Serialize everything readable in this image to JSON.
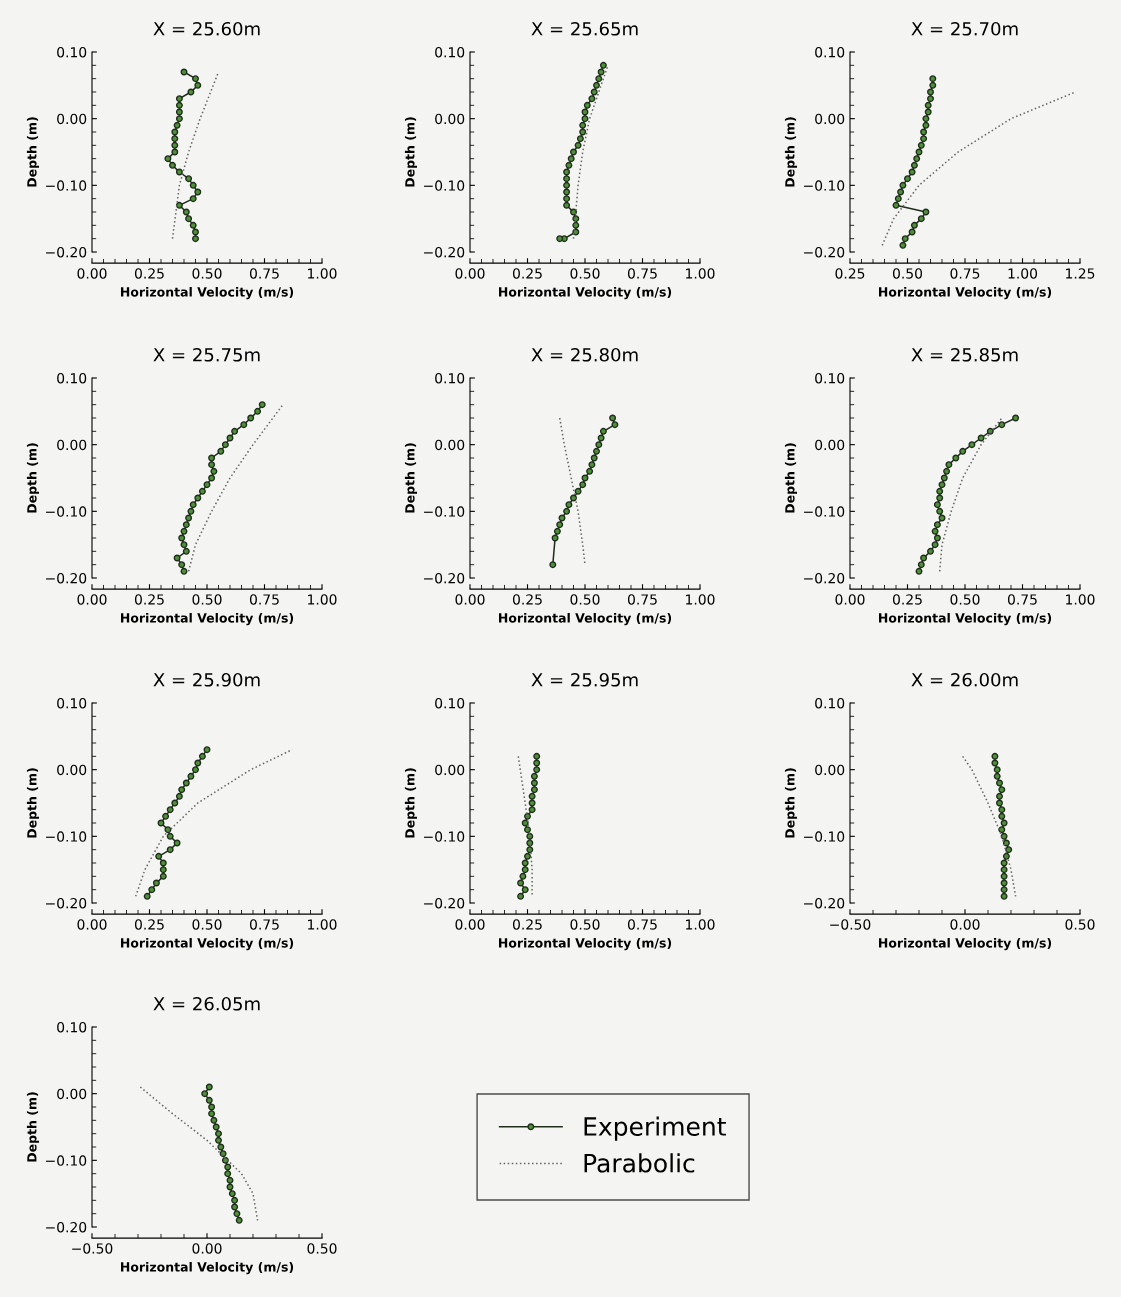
{
  "chart_data": [
    {
      "type": "line",
      "title": "X = 25.60m",
      "xlabel": "Horizontal Velocity (m/s)",
      "ylabel": "Depth (m)",
      "xlim": [
        0,
        1
      ],
      "xticks": [
        {
          "value": 0,
          "label": "0.00"
        },
        {
          "value": 0.25,
          "label": "0.25"
        },
        {
          "value": 0.5,
          "label": "0.50"
        },
        {
          "value": 0.75,
          "label": "0.75"
        },
        {
          "value": 1,
          "label": "1.00"
        }
      ],
      "ylim": [
        -0.2,
        0.1
      ],
      "yticks": [
        {
          "value": -0.2,
          "label": "−0.20"
        },
        {
          "value": -0.1,
          "label": "−0.10"
        },
        {
          "value": 0,
          "label": "0.00"
        },
        {
          "value": 0.1,
          "label": "0.10"
        }
      ],
      "series": [
        {
          "color": "#1e2e1a",
          "marker": "circle",
          "line_style": "solid",
          "x": [
            0.4,
            0.45,
            0.46,
            0.43,
            0.38,
            0.38,
            0.38,
            0.38,
            0.37,
            0.36,
            0.36,
            0.36,
            0.36,
            0.33,
            0.35,
            0.38,
            0.42,
            0.44,
            0.46,
            0.44,
            0.38,
            0.41,
            0.42,
            0.44,
            0.45,
            0.45
          ],
          "values": [
            0.07,
            0.06,
            0.05,
            0.04,
            0.03,
            0.02,
            0.01,
            0.0,
            -0.01,
            -0.02,
            -0.03,
            -0.04,
            -0.05,
            -0.06,
            -0.07,
            -0.08,
            -0.09,
            -0.1,
            -0.11,
            -0.12,
            -0.13,
            -0.14,
            -0.15,
            -0.16,
            -0.17,
            -0.18
          ]
        },
        {
          "color": "#666666",
          "marker": "none",
          "line_style": "dotted",
          "x": [
            0.35,
            0.38,
            0.42,
            0.47,
            0.55
          ],
          "values": [
            -0.18,
            -0.1,
            -0.05,
            0.0,
            0.07
          ]
        }
      ]
    },
    {
      "type": "line",
      "title": "X = 25.65m",
      "xlabel": "Horizontal Velocity (m/s)",
      "ylabel": "Depth (m)",
      "xlim": [
        0,
        1
      ],
      "xticks": [
        {
          "value": 0,
          "label": "0.00"
        },
        {
          "value": 0.25,
          "label": "0.25"
        },
        {
          "value": 0.5,
          "label": "0.50"
        },
        {
          "value": 0.75,
          "label": "0.75"
        },
        {
          "value": 1,
          "label": "1.00"
        }
      ],
      "ylim": [
        -0.2,
        0.1
      ],
      "yticks": [
        {
          "value": -0.2,
          "label": "−0.20"
        },
        {
          "value": -0.1,
          "label": "−0.10"
        },
        {
          "value": 0,
          "label": "0.00"
        },
        {
          "value": 0.1,
          "label": "0.10"
        }
      ],
      "series": [
        {
          "color": "#1e2e1a",
          "marker": "circle",
          "line_style": "solid",
          "x": [
            0.58,
            0.57,
            0.56,
            0.55,
            0.54,
            0.53,
            0.51,
            0.5,
            0.5,
            0.49,
            0.49,
            0.48,
            0.47,
            0.45,
            0.44,
            0.43,
            0.42,
            0.42,
            0.42,
            0.42,
            0.42,
            0.42,
            0.45,
            0.46,
            0.46,
            0.46,
            0.41,
            0.39
          ],
          "values": [
            0.08,
            0.07,
            0.06,
            0.05,
            0.04,
            0.03,
            0.02,
            0.01,
            0.0,
            -0.01,
            -0.02,
            -0.03,
            -0.04,
            -0.05,
            -0.06,
            -0.07,
            -0.08,
            -0.09,
            -0.1,
            -0.11,
            -0.12,
            -0.13,
            -0.14,
            -0.15,
            -0.16,
            -0.17,
            -0.18,
            -0.18
          ]
        },
        {
          "color": "#666666",
          "marker": "none",
          "line_style": "dotted",
          "x": [
            0.45,
            0.47,
            0.49,
            0.52,
            0.57,
            0.6
          ],
          "values": [
            -0.18,
            -0.1,
            -0.05,
            0.0,
            0.05,
            0.08
          ]
        }
      ]
    },
    {
      "type": "line",
      "title": "X = 25.70m",
      "xlabel": "Horizontal Velocity (m/s)",
      "ylabel": "Depth (m)",
      "xlim": [
        0.25,
        1.25
      ],
      "xticks": [
        {
          "value": 0.25,
          "label": "0.25"
        },
        {
          "value": 0.5,
          "label": "0.50"
        },
        {
          "value": 0.75,
          "label": "0.75"
        },
        {
          "value": 1,
          "label": "1.00"
        },
        {
          "value": 1.25,
          "label": "1.25"
        }
      ],
      "ylim": [
        -0.2,
        0.1
      ],
      "yticks": [
        {
          "value": -0.2,
          "label": "−0.20"
        },
        {
          "value": -0.1,
          "label": "−0.10"
        },
        {
          "value": 0,
          "label": "0.00"
        },
        {
          "value": 0.1,
          "label": "0.10"
        }
      ],
      "series": [
        {
          "color": "#1e2e1a",
          "marker": "circle",
          "line_style": "solid",
          "x": [
            0.61,
            0.61,
            0.6,
            0.6,
            0.59,
            0.59,
            0.58,
            0.58,
            0.57,
            0.57,
            0.56,
            0.55,
            0.54,
            0.53,
            0.52,
            0.5,
            0.48,
            0.47,
            0.46,
            0.45,
            0.58,
            0.56,
            0.53,
            0.52,
            0.49,
            0.48
          ],
          "values": [
            0.06,
            0.05,
            0.04,
            0.03,
            0.02,
            0.01,
            0.0,
            -0.01,
            -0.02,
            -0.03,
            -0.04,
            -0.05,
            -0.06,
            -0.07,
            -0.08,
            -0.09,
            -0.1,
            -0.11,
            -0.12,
            -0.13,
            -0.14,
            -0.15,
            -0.16,
            -0.17,
            -0.18,
            -0.19
          ]
        },
        {
          "color": "#666666",
          "marker": "none",
          "line_style": "dotted",
          "x": [
            0.39,
            0.44,
            0.55,
            0.72,
            0.95,
            1.23
          ],
          "values": [
            -0.19,
            -0.15,
            -0.1,
            -0.05,
            0.0,
            0.04
          ]
        }
      ]
    },
    {
      "type": "line",
      "title": "X = 25.75m",
      "xlabel": "Horizontal Velocity (m/s)",
      "ylabel": "Depth (m)",
      "xlim": [
        0,
        1
      ],
      "xticks": [
        {
          "value": 0,
          "label": "0.00"
        },
        {
          "value": 0.25,
          "label": "0.25"
        },
        {
          "value": 0.5,
          "label": "0.50"
        },
        {
          "value": 0.75,
          "label": "0.75"
        },
        {
          "value": 1,
          "label": "1.00"
        }
      ],
      "ylim": [
        -0.2,
        0.1
      ],
      "yticks": [
        {
          "value": -0.2,
          "label": "−0.20"
        },
        {
          "value": -0.1,
          "label": "−0.10"
        },
        {
          "value": 0,
          "label": "0.00"
        },
        {
          "value": 0.1,
          "label": "0.10"
        }
      ],
      "series": [
        {
          "color": "#1e2e1a",
          "marker": "circle",
          "line_style": "solid",
          "x": [
            0.74,
            0.72,
            0.69,
            0.66,
            0.62,
            0.6,
            0.58,
            0.56,
            0.52,
            0.52,
            0.53,
            0.52,
            0.5,
            0.48,
            0.46,
            0.44,
            0.43,
            0.42,
            0.41,
            0.4,
            0.39,
            0.4,
            0.41,
            0.37,
            0.39,
            0.4
          ],
          "values": [
            0.06,
            0.05,
            0.04,
            0.03,
            0.02,
            0.01,
            0.0,
            -0.01,
            -0.02,
            -0.03,
            -0.04,
            -0.05,
            -0.06,
            -0.07,
            -0.08,
            -0.09,
            -0.1,
            -0.11,
            -0.12,
            -0.13,
            -0.14,
            -0.15,
            -0.16,
            -0.17,
            -0.18,
            -0.19
          ]
        },
        {
          "color": "#666666",
          "marker": "none",
          "line_style": "dotted",
          "x": [
            0.42,
            0.45,
            0.52,
            0.6,
            0.7,
            0.83
          ],
          "values": [
            -0.19,
            -0.15,
            -0.1,
            -0.05,
            0.0,
            0.06
          ]
        }
      ]
    },
    {
      "type": "line",
      "title": "X = 25.80m",
      "xlabel": "Horizontal Velocity (m/s)",
      "ylabel": "Depth (m)",
      "xlim": [
        0,
        1
      ],
      "xticks": [
        {
          "value": 0,
          "label": "0.00"
        },
        {
          "value": 0.25,
          "label": "0.25"
        },
        {
          "value": 0.5,
          "label": "0.50"
        },
        {
          "value": 0.75,
          "label": "0.75"
        },
        {
          "value": 1,
          "label": "1.00"
        }
      ],
      "ylim": [
        -0.2,
        0.1
      ],
      "yticks": [
        {
          "value": -0.2,
          "label": "−0.20"
        },
        {
          "value": -0.1,
          "label": "−0.10"
        },
        {
          "value": 0,
          "label": "0.00"
        },
        {
          "value": 0.1,
          "label": "0.10"
        }
      ],
      "series": [
        {
          "color": "#1e2e1a",
          "marker": "circle",
          "line_style": "solid",
          "x": [
            0.62,
            0.63,
            0.58,
            0.57,
            0.56,
            0.55,
            0.54,
            0.53,
            0.52,
            0.5,
            0.49,
            0.47,
            0.45,
            0.43,
            0.42,
            0.4,
            0.39,
            0.38,
            0.37,
            0.36
          ],
          "values": [
            0.04,
            0.03,
            0.02,
            0.01,
            0.0,
            -0.01,
            -0.02,
            -0.03,
            -0.04,
            -0.05,
            -0.06,
            -0.07,
            -0.08,
            -0.09,
            -0.1,
            -0.11,
            -0.12,
            -0.13,
            -0.14,
            -0.18
          ]
        },
        {
          "color": "#666666",
          "marker": "none",
          "line_style": "dotted",
          "x": [
            0.39,
            0.41,
            0.44,
            0.47,
            0.49,
            0.5
          ],
          "values": [
            0.04,
            0.0,
            -0.05,
            -0.1,
            -0.15,
            -0.18
          ]
        }
      ]
    },
    {
      "type": "line",
      "title": "X = 25.85m",
      "xlabel": "Horizontal Velocity (m/s)",
      "ylabel": "Depth (m)",
      "xlim": [
        0,
        1
      ],
      "xticks": [
        {
          "value": 0,
          "label": "0.00"
        },
        {
          "value": 0.25,
          "label": "0.25"
        },
        {
          "value": 0.5,
          "label": "0.50"
        },
        {
          "value": 0.75,
          "label": "0.75"
        },
        {
          "value": 1,
          "label": "1.00"
        }
      ],
      "ylim": [
        -0.2,
        0.1
      ],
      "yticks": [
        {
          "value": -0.2,
          "label": "−0.20"
        },
        {
          "value": -0.1,
          "label": "−0.10"
        },
        {
          "value": 0,
          "label": "0.00"
        },
        {
          "value": 0.1,
          "label": "0.10"
        }
      ],
      "series": [
        {
          "color": "#1e2e1a",
          "marker": "circle",
          "line_style": "solid",
          "x": [
            0.72,
            0.66,
            0.61,
            0.57,
            0.53,
            0.49,
            0.46,
            0.43,
            0.42,
            0.41,
            0.4,
            0.39,
            0.39,
            0.38,
            0.39,
            0.4,
            0.38,
            0.37,
            0.38,
            0.37,
            0.35,
            0.32,
            0.31,
            0.3
          ],
          "values": [
            0.04,
            0.03,
            0.02,
            0.01,
            0.0,
            -0.01,
            -0.02,
            -0.03,
            -0.04,
            -0.05,
            -0.06,
            -0.07,
            -0.08,
            -0.09,
            -0.1,
            -0.11,
            -0.12,
            -0.13,
            -0.14,
            -0.15,
            -0.16,
            -0.17,
            -0.18,
            -0.19
          ]
        },
        {
          "color": "#666666",
          "marker": "none",
          "line_style": "dotted",
          "x": [
            0.39,
            0.4,
            0.44,
            0.49,
            0.57,
            0.66
          ],
          "values": [
            -0.19,
            -0.15,
            -0.1,
            -0.05,
            0.0,
            0.04
          ]
        }
      ]
    },
    {
      "type": "line",
      "title": "X = 25.90m",
      "xlabel": "Horizontal Velocity (m/s)",
      "ylabel": "Depth (m)",
      "xlim": [
        0,
        1
      ],
      "xticks": [
        {
          "value": 0,
          "label": "0.00"
        },
        {
          "value": 0.25,
          "label": "0.25"
        },
        {
          "value": 0.5,
          "label": "0.50"
        },
        {
          "value": 0.75,
          "label": "0.75"
        },
        {
          "value": 1,
          "label": "1.00"
        }
      ],
      "ylim": [
        -0.2,
        0.1
      ],
      "yticks": [
        {
          "value": -0.2,
          "label": "−0.20"
        },
        {
          "value": -0.1,
          "label": "−0.10"
        },
        {
          "value": 0,
          "label": "0.00"
        },
        {
          "value": 0.1,
          "label": "0.10"
        }
      ],
      "series": [
        {
          "color": "#1e2e1a",
          "marker": "circle",
          "line_style": "solid",
          "x": [
            0.5,
            0.48,
            0.46,
            0.45,
            0.43,
            0.41,
            0.39,
            0.38,
            0.36,
            0.34,
            0.32,
            0.3,
            0.33,
            0.34,
            0.37,
            0.34,
            0.29,
            0.31,
            0.31,
            0.31,
            0.28,
            0.26,
            0.24
          ],
          "values": [
            0.03,
            0.02,
            0.01,
            0.0,
            -0.01,
            -0.02,
            -0.03,
            -0.04,
            -0.05,
            -0.06,
            -0.07,
            -0.08,
            -0.09,
            -0.1,
            -0.11,
            -0.12,
            -0.13,
            -0.14,
            -0.15,
            -0.16,
            -0.17,
            -0.18,
            -0.19
          ]
        },
        {
          "color": "#666666",
          "marker": "none",
          "line_style": "dotted",
          "x": [
            0.19,
            0.23,
            0.31,
            0.46,
            0.69,
            0.87
          ],
          "values": [
            -0.19,
            -0.15,
            -0.1,
            -0.05,
            0.0,
            0.03
          ]
        }
      ]
    },
    {
      "type": "line",
      "title": "X = 25.95m",
      "xlabel": "Horizontal Velocity (m/s)",
      "ylabel": "Depth (m)",
      "xlim": [
        0,
        1
      ],
      "xticks": [
        {
          "value": 0,
          "label": "0.00"
        },
        {
          "value": 0.25,
          "label": "0.25"
        },
        {
          "value": 0.5,
          "label": "0.50"
        },
        {
          "value": 0.75,
          "label": "0.75"
        },
        {
          "value": 1,
          "label": "1.00"
        }
      ],
      "ylim": [
        -0.2,
        0.1
      ],
      "yticks": [
        {
          "value": -0.2,
          "label": "−0.20"
        },
        {
          "value": -0.1,
          "label": "−0.10"
        },
        {
          "value": 0,
          "label": "0.00"
        },
        {
          "value": 0.1,
          "label": "0.10"
        }
      ],
      "series": [
        {
          "color": "#1e2e1a",
          "marker": "circle",
          "line_style": "solid",
          "x": [
            0.29,
            0.29,
            0.29,
            0.28,
            0.28,
            0.28,
            0.27,
            0.27,
            0.27,
            0.25,
            0.24,
            0.25,
            0.26,
            0.26,
            0.26,
            0.25,
            0.24,
            0.24,
            0.23,
            0.22,
            0.24,
            0.22
          ],
          "values": [
            0.02,
            0.01,
            0.0,
            -0.01,
            -0.02,
            -0.03,
            -0.04,
            -0.05,
            -0.06,
            -0.07,
            -0.08,
            -0.09,
            -0.1,
            -0.11,
            -0.12,
            -0.13,
            -0.14,
            -0.15,
            -0.16,
            -0.17,
            -0.18,
            -0.19
          ]
        },
        {
          "color": "#666666",
          "marker": "none",
          "line_style": "dotted",
          "x": [
            0.21,
            0.24,
            0.26,
            0.27,
            0.27
          ],
          "values": [
            0.02,
            -0.05,
            -0.1,
            -0.15,
            -0.19
          ]
        }
      ]
    },
    {
      "type": "line",
      "title": "X = 26.00m",
      "xlabel": "Horizontal Velocity (m/s)",
      "ylabel": "Depth (m)",
      "xlim": [
        -0.5,
        0.5
      ],
      "xticks": [
        {
          "value": -0.5,
          "label": "−0.50"
        },
        {
          "value": 0,
          "label": "0.00"
        },
        {
          "value": 0.5,
          "label": "0.50"
        }
      ],
      "ylim": [
        -0.2,
        0.1
      ],
      "yticks": [
        {
          "value": -0.2,
          "label": "−0.20"
        },
        {
          "value": -0.1,
          "label": "−0.10"
        },
        {
          "value": 0,
          "label": "0.00"
        },
        {
          "value": 0.1,
          "label": "0.10"
        }
      ],
      "series": [
        {
          "color": "#1e2e1a",
          "marker": "circle",
          "line_style": "solid",
          "x": [
            0.13,
            0.13,
            0.14,
            0.14,
            0.15,
            0.16,
            0.15,
            0.15,
            0.16,
            0.16,
            0.17,
            0.16,
            0.17,
            0.18,
            0.19,
            0.18,
            0.17,
            0.17,
            0.17,
            0.17,
            0.17,
            0.17
          ],
          "values": [
            0.02,
            0.01,
            0.0,
            -0.01,
            -0.02,
            -0.03,
            -0.04,
            -0.05,
            -0.06,
            -0.07,
            -0.08,
            -0.09,
            -0.1,
            -0.11,
            -0.12,
            -0.13,
            -0.14,
            -0.15,
            -0.16,
            -0.17,
            -0.18,
            -0.19
          ]
        },
        {
          "color": "#666666",
          "marker": "none",
          "line_style": "dotted",
          "x": [
            -0.01,
            0.03,
            0.1,
            0.16,
            0.2,
            0.22
          ],
          "values": [
            0.02,
            0.0,
            -0.05,
            -0.1,
            -0.15,
            -0.19
          ]
        }
      ]
    },
    {
      "type": "line",
      "title": "X = 26.05m",
      "xlabel": "Horizontal Velocity (m/s)",
      "ylabel": "Depth (m)",
      "xlim": [
        -0.5,
        0.5
      ],
      "xticks": [
        {
          "value": -0.5,
          "label": "−0.50"
        },
        {
          "value": 0,
          "label": "0.00"
        },
        {
          "value": 0.5,
          "label": "0.50"
        }
      ],
      "ylim": [
        -0.2,
        0.1
      ],
      "yticks": [
        {
          "value": -0.2,
          "label": "−0.20"
        },
        {
          "value": -0.1,
          "label": "−0.10"
        },
        {
          "value": 0,
          "label": "0.00"
        },
        {
          "value": 0.1,
          "label": "0.10"
        }
      ],
      "legend": "right",
      "series": [
        {
          "name": "Experiment",
          "color": "#1e2e1a",
          "marker": "circle",
          "line_style": "solid",
          "x": [
            0.01,
            -0.01,
            0.01,
            0.02,
            0.02,
            0.03,
            0.04,
            0.05,
            0.05,
            0.06,
            0.07,
            0.08,
            0.09,
            0.09,
            0.1,
            0.1,
            0.11,
            0.12,
            0.12,
            0.13,
            0.14
          ],
          "values": [
            0.01,
            0.0,
            -0.01,
            -0.02,
            -0.03,
            -0.04,
            -0.05,
            -0.06,
            -0.07,
            -0.08,
            -0.09,
            -0.1,
            -0.11,
            -0.12,
            -0.13,
            -0.14,
            -0.15,
            -0.16,
            -0.17,
            -0.18,
            -0.19
          ]
        },
        {
          "name": "Parabolic",
          "color": "#666666",
          "marker": "none",
          "line_style": "dotted",
          "x": [
            -0.29,
            -0.15,
            0.0,
            0.09,
            0.15,
            0.2,
            0.22
          ],
          "values": [
            0.01,
            -0.03,
            -0.07,
            -0.1,
            -0.12,
            -0.15,
            -0.19
          ]
        }
      ]
    }
  ]
}
